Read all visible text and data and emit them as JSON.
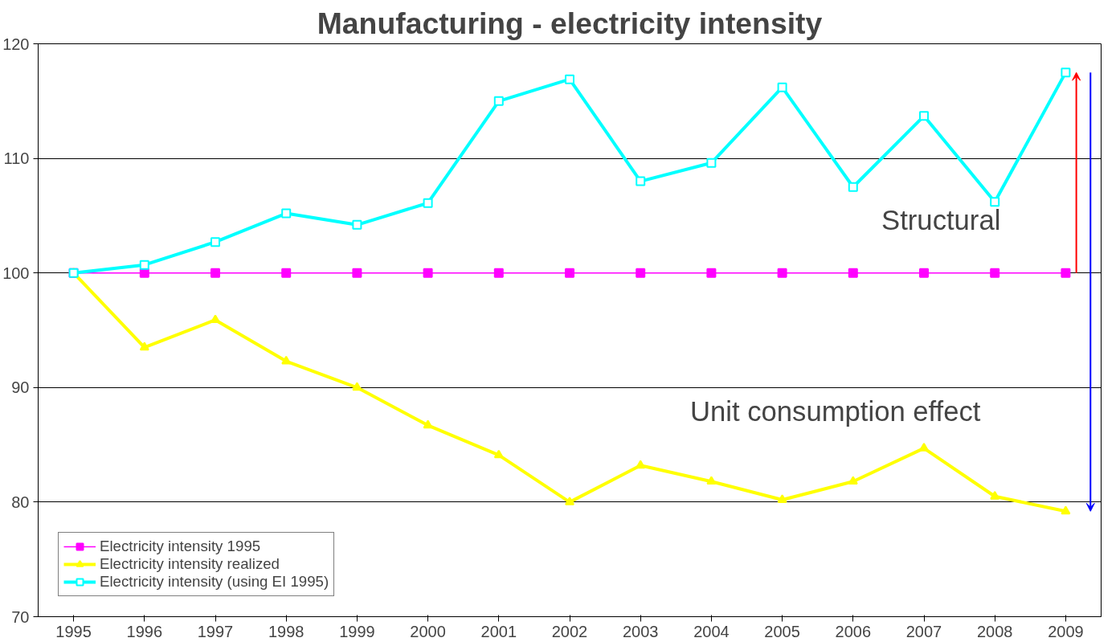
{
  "chart_data": {
    "type": "line",
    "title": "Manufacturing - electricity intensity",
    "categories": [
      "1995",
      "1996",
      "1997",
      "1998",
      "1999",
      "2000",
      "2001",
      "2002",
      "2003",
      "2004",
      "2005",
      "2006",
      "2007",
      "2008",
      "2009"
    ],
    "series": [
      {
        "name": "Electricity intensity 1995",
        "color": "#ff00ff",
        "marker": "square",
        "values": [
          100,
          100,
          100,
          100,
          100,
          100,
          100,
          100,
          100,
          100,
          100,
          100,
          100,
          100,
          100
        ]
      },
      {
        "name": "Electricity intensity realized",
        "color": "#ffff00",
        "marker": "triangle",
        "values": [
          100,
          93.5,
          95.9,
          92.3,
          90.0,
          86.7,
          84.1,
          80.0,
          83.2,
          81.8,
          80.2,
          81.8,
          84.7,
          80.5,
          79.2
        ]
      },
      {
        "name": "Electricity intensity (using EI 1995)",
        "color": "#00ffff",
        "marker": "square",
        "values": [
          100,
          100.7,
          102.7,
          105.2,
          104.2,
          106.1,
          115.0,
          116.9,
          108.0,
          109.6,
          116.2,
          107.5,
          113.7,
          106.2,
          117.5
        ]
      }
    ],
    "ylim": [
      70,
      120
    ],
    "yticks": [
      70,
      80,
      90,
      100,
      110,
      120
    ],
    "grid": "y",
    "legend": "bottom left",
    "annotations": [
      "Structural",
      "Unit consumption effect"
    ]
  }
}
